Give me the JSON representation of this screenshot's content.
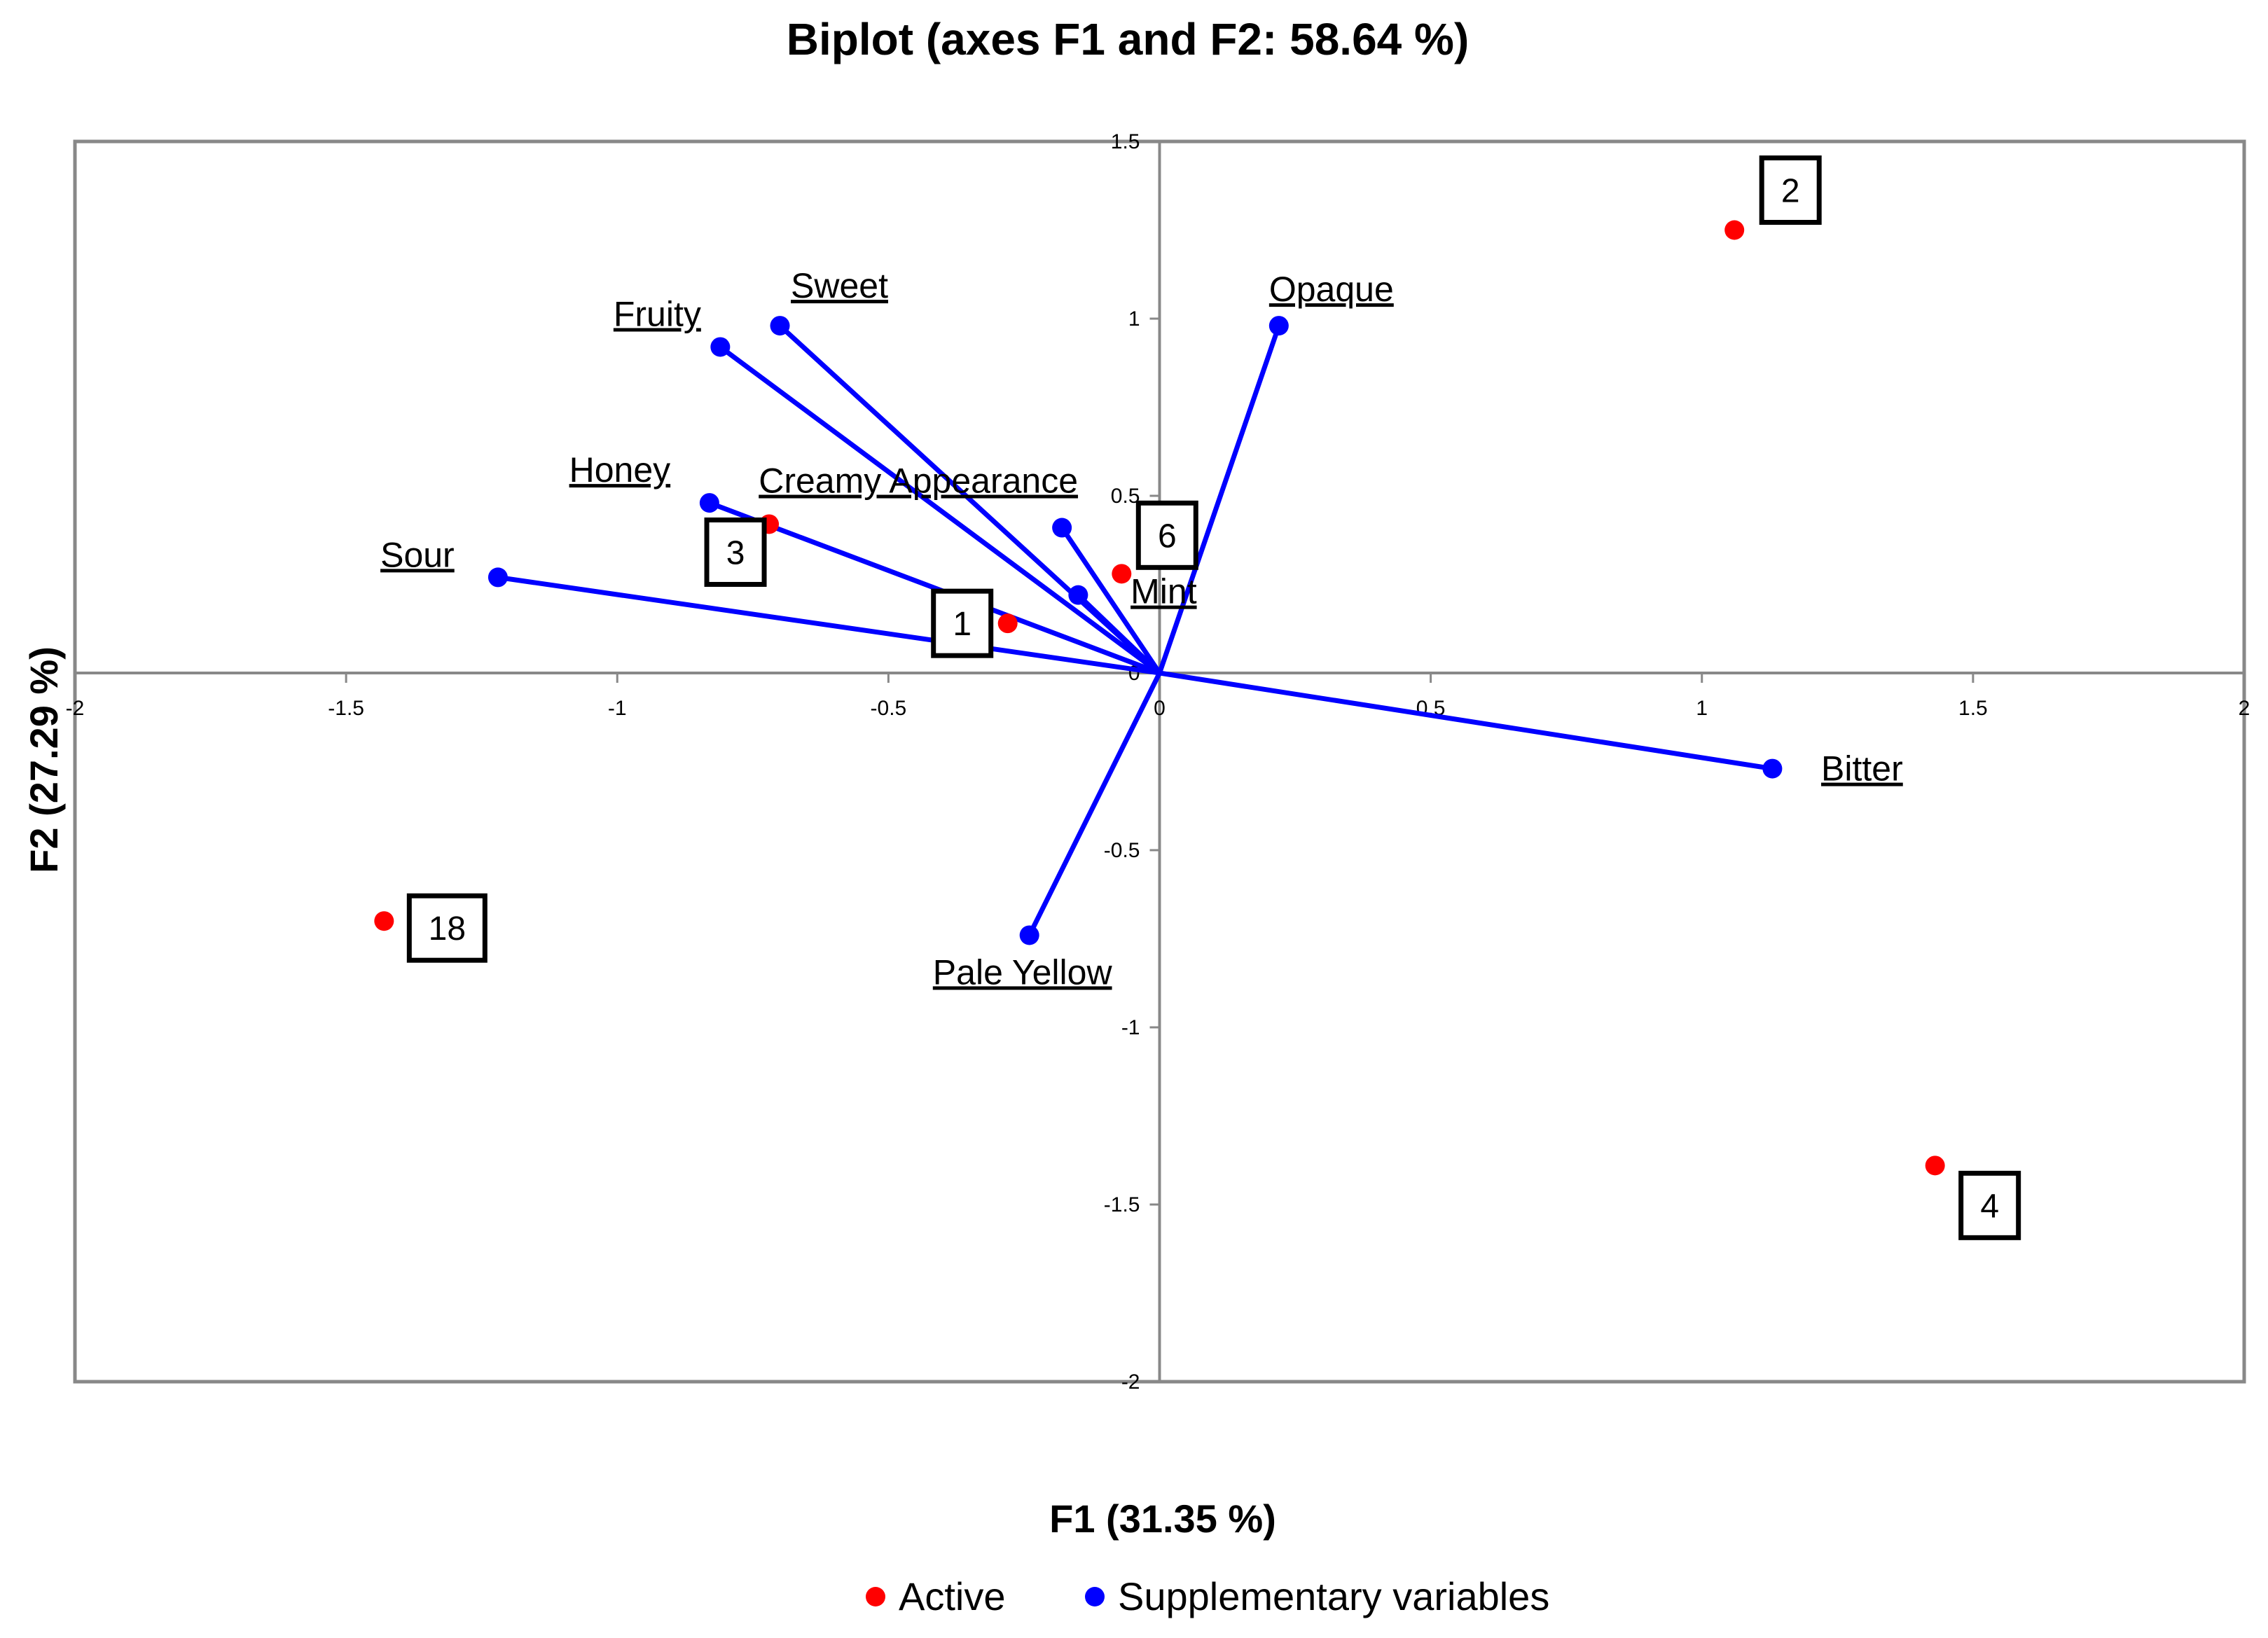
{
  "chart_data": {
    "type": "scatter",
    "title": "Biplot (axes F1 and F2: 58.64 %)",
    "xlabel": "F1 (31.35 %)",
    "ylabel": "F2 (27.29 %)",
    "xlim": [
      -2,
      2
    ],
    "ylim": [
      -2,
      1.5
    ],
    "x_ticks": [
      -2,
      -1.5,
      -1,
      -0.5,
      0,
      0.5,
      1,
      1.5,
      2
    ],
    "y_ticks": [
      -2,
      -1.5,
      -1,
      -0.5,
      0,
      0.5,
      1,
      1.5
    ],
    "x_tick_labels": [
      "-2",
      "-1.5",
      "-1",
      "-0.5",
      "0",
      "0.5",
      "1",
      "1.5",
      "2"
    ],
    "y_tick_labels": [
      "-2",
      "-1.5",
      "-1",
      "-0.5",
      "0",
      "0.5",
      "1",
      "1.5"
    ],
    "grid": false,
    "legend_position": "bottom",
    "series": [
      {
        "name": "Active",
        "color": "#ff0000",
        "points": [
          {
            "label": "2",
            "x": 1.06,
            "y": 1.25
          },
          {
            "label": "6",
            "x": -0.07,
            "y": 0.28
          },
          {
            "label": "3",
            "x": -0.72,
            "y": 0.42
          },
          {
            "label": "1",
            "x": -0.28,
            "y": 0.14
          },
          {
            "label": "18",
            "x": -1.43,
            "y": -0.7
          },
          {
            "label": "4",
            "x": 1.43,
            "y": -1.39
          }
        ]
      },
      {
        "name": "Supplementary variables",
        "color": "#0000ff",
        "points": [
          {
            "label": "Sweet",
            "x": -0.7,
            "y": 0.98
          },
          {
            "label": "Fruity",
            "x": -0.81,
            "y": 0.92
          },
          {
            "label": "Opaque",
            "x": 0.22,
            "y": 0.98
          },
          {
            "label": "Honey",
            "x": -0.83,
            "y": 0.48
          },
          {
            "label": "Creamy Appearance",
            "x": -0.18,
            "y": 0.41
          },
          {
            "label": "Mint",
            "x": -0.15,
            "y": 0.22
          },
          {
            "label": "Sour",
            "x": -1.22,
            "y": 0.27
          },
          {
            "label": "Bitter",
            "x": 1.13,
            "y": -0.27
          },
          {
            "label": "Pale Yellow",
            "x": -0.24,
            "y": -0.74
          }
        ]
      }
    ]
  }
}
